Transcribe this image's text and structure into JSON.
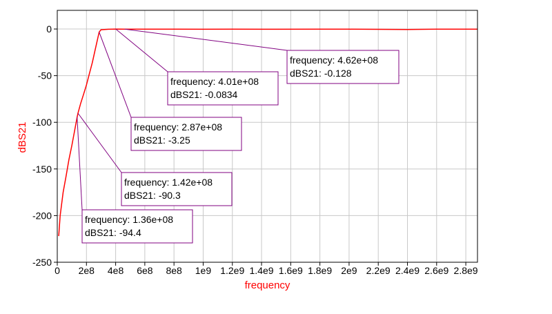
{
  "chart_data": {
    "type": "line",
    "xlabel": "frequency",
    "ylabel": "dBS21",
    "xlim": [
      0,
      2880000000.0
    ],
    "ylim": [
      -250,
      20
    ],
    "x_ticks": [
      {
        "value": 0,
        "label": "0"
      },
      {
        "value": 200000000.0,
        "label": "2e8"
      },
      {
        "value": 400000000.0,
        "label": "4e8"
      },
      {
        "value": 600000000.0,
        "label": "6e8"
      },
      {
        "value": 800000000.0,
        "label": "8e8"
      },
      {
        "value": 1000000000.0,
        "label": "1e9"
      },
      {
        "value": 1200000000.0,
        "label": "1.2e9"
      },
      {
        "value": 1400000000.0,
        "label": "1.4e9"
      },
      {
        "value": 1600000000.0,
        "label": "1.6e9"
      },
      {
        "value": 1800000000.0,
        "label": "1.8e9"
      },
      {
        "value": 2000000000.0,
        "label": "2e9"
      },
      {
        "value": 2200000000.0,
        "label": "2.2e9"
      },
      {
        "value": 2400000000.0,
        "label": "2.4e9"
      },
      {
        "value": 2600000000.0,
        "label": "2.6e9"
      },
      {
        "value": 2800000000.0,
        "label": "2.8e9"
      }
    ],
    "y_ticks": [
      {
        "value": 0,
        "label": "0"
      },
      {
        "value": -50,
        "label": "-50"
      },
      {
        "value": -100,
        "label": "-100"
      },
      {
        "value": -150,
        "label": "-150"
      },
      {
        "value": -200,
        "label": "-200"
      },
      {
        "value": -250,
        "label": "-250"
      }
    ],
    "grid": true,
    "colors": {
      "trace": "#ff0000",
      "axis_label": "#ff0000",
      "marker": "#800080",
      "grid": "#c8c8c8"
    },
    "series": [
      {
        "x": [
          10000000.0,
          20000000.0,
          40000000.0,
          60000000.0,
          80000000.0,
          100000000.0,
          120000000.0,
          136000000.0,
          142000000.0,
          160000000.0,
          180000000.0,
          200000000.0,
          220000000.0,
          240000000.0,
          260000000.0,
          287000000.0,
          300000000.0,
          350000000.0,
          401000000.0,
          462000000.0,
          600000000.0,
          800000000.0,
          1000000000.0,
          1200000000.0,
          1500000000.0,
          1800000000.0,
          2000000000.0,
          2400000000.0,
          2600000000.0,
          2880000000.0
        ],
        "y": [
          -222,
          -200,
          -175,
          -158,
          -140,
          -125,
          -108,
          -94.4,
          -90.3,
          -80,
          -70,
          -60,
          -48,
          -36,
          -22,
          -3.25,
          -0.8,
          -0.3,
          -0.0834,
          -0.128,
          -0.2,
          -0.2,
          -0.3,
          -0.1,
          -0.3,
          -0.2,
          -0.2,
          -0.5,
          -0.2,
          -0.2
        ]
      }
    ],
    "markers": [
      {
        "x": 462000000.0,
        "y": -0.128,
        "line1": "frequency: 4.62e+08",
        "line2": "dBS21: -0.128"
      },
      {
        "x": 401000000.0,
        "y": -0.0834,
        "line1": "frequency: 4.01e+08",
        "line2": "dBS21: -0.0834"
      },
      {
        "x": 287000000.0,
        "y": -3.25,
        "line1": "frequency: 2.87e+08",
        "line2": "dBS21: -3.25"
      },
      {
        "x": 142000000.0,
        "y": -90.3,
        "line1": "frequency: 1.42e+08",
        "line2": "dBS21: -90.3"
      },
      {
        "x": 136000000.0,
        "y": -94.4,
        "line1": "frequency: 1.36e+08",
        "line2": "dBS21: -94.4"
      }
    ]
  }
}
